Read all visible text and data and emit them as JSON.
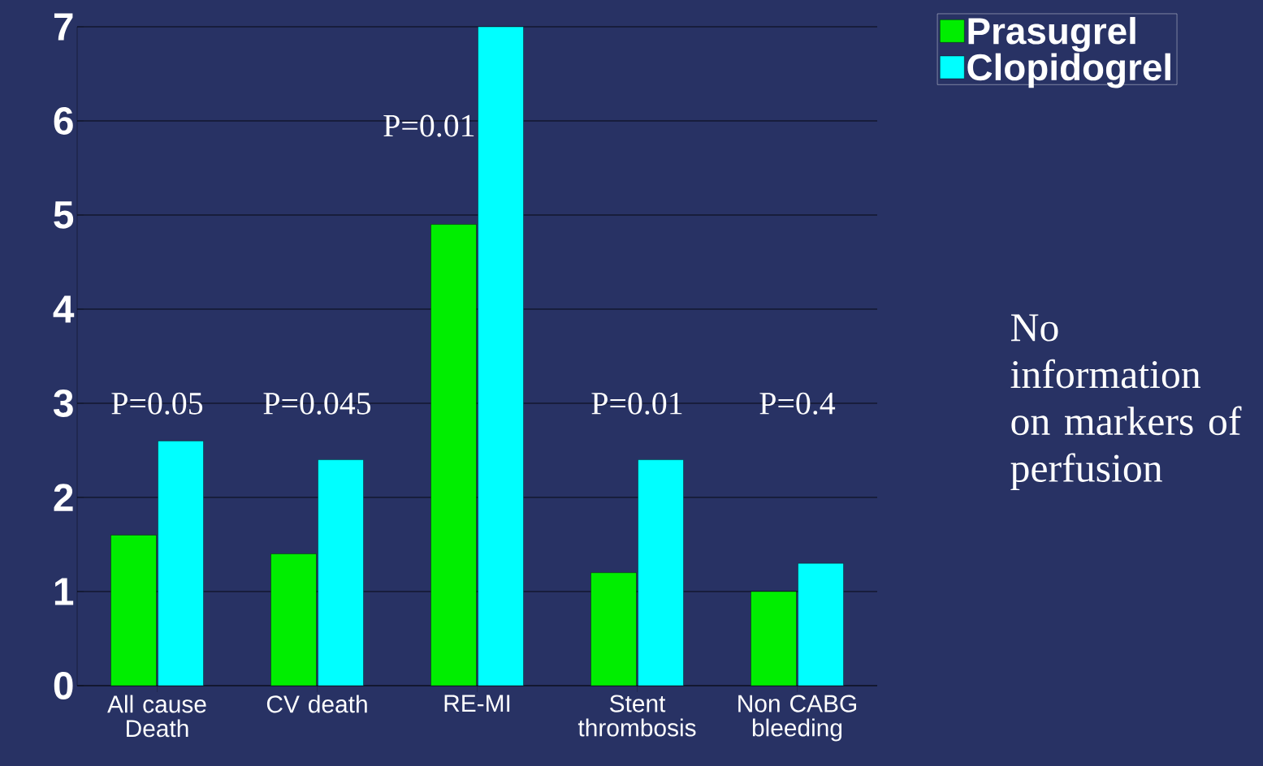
{
  "chart_data": {
    "type": "bar",
    "categories": [
      "All cause Death",
      "CV death",
      "RE-MI",
      "Stent thrombosis",
      "Non CABG bleeding"
    ],
    "series": [
      {
        "name": "Prasugrel",
        "color": "#00ee00",
        "values": [
          1.6,
          1.4,
          4.9,
          1.2,
          1.0
        ]
      },
      {
        "name": "Clopidogrel",
        "color": "#00ffff",
        "values": [
          2.6,
          2.4,
          7.0,
          2.4,
          1.3
        ]
      }
    ],
    "ylim": [
      0,
      7
    ],
    "yticks": [
      0,
      1,
      2,
      3,
      4,
      5,
      6,
      7
    ],
    "grid": "y",
    "legend": "top right",
    "annotations": [
      "P=0.05",
      "P=0.045",
      "P=0.01",
      "P=0.01",
      "P=0.4",
      "No information on markers of perfusion"
    ]
  }
}
